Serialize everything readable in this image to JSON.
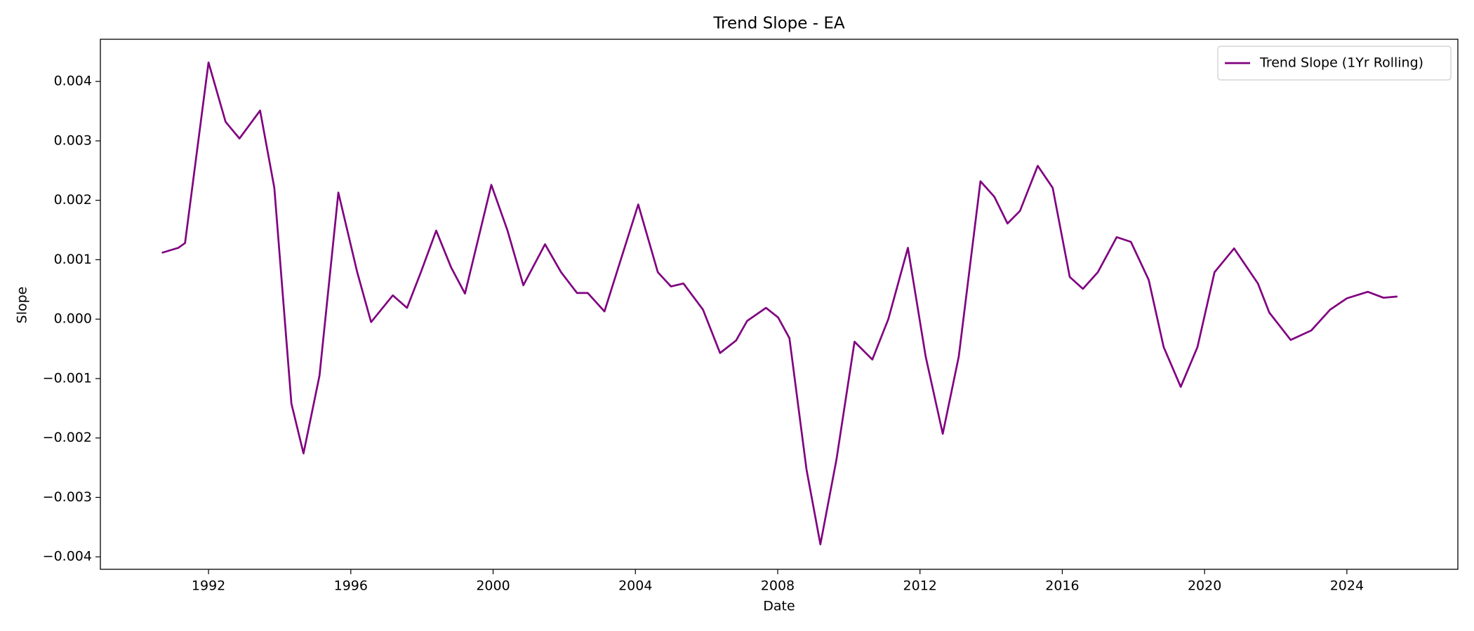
{
  "chart_data": {
    "type": "line",
    "title": "Trend Slope - EA",
    "x_label": "Date",
    "y_label": "Slope",
    "legend": "upper right",
    "grid": false,
    "xlim": [
      1988.96,
      2027.12
    ],
    "xticks": [
      1992,
      1996,
      2000,
      2004,
      2008,
      2012,
      2016,
      2020,
      2024
    ],
    "ylim": [
      -0.00421,
      0.00471
    ],
    "yticks": [
      {
        "value": -0.004,
        "label": "−0.004"
      },
      {
        "value": -0.003,
        "label": "−0.003"
      },
      {
        "value": -0.002,
        "label": "−0.002"
      },
      {
        "value": -0.001,
        "label": "−0.001"
      },
      {
        "value": 0,
        "label": "0.000"
      },
      0.001,
      0.002,
      0.003,
      0.004
    ],
    "x": [
      1990.71,
      1991.15,
      1991.34,
      1992.0,
      1992.48,
      1992.87,
      1993.45,
      1993.85,
      1994.33,
      1994.67,
      1995.12,
      1995.65,
      1996.18,
      1996.57,
      1997.18,
      1997.58,
      1997.97,
      1998.4,
      1998.82,
      1999.21,
      1999.95,
      2000.4,
      2000.85,
      2001.46,
      2001.91,
      2002.36,
      2002.66,
      2003.13,
      2004.08,
      2004.63,
      2005.0,
      2005.35,
      2005.9,
      2006.38,
      2006.83,
      2007.14,
      2007.67,
      2008.01,
      2008.33,
      2008.81,
      2009.2,
      2009.65,
      2010.16,
      2010.66,
      2011.11,
      2011.66,
      2012.16,
      2012.64,
      2013.09,
      2013.7,
      2014.09,
      2014.46,
      2014.81,
      2015.31,
      2015.73,
      2016.21,
      2016.58,
      2017.0,
      2017.53,
      2017.93,
      2018.43,
      2018.85,
      2019.33,
      2019.8,
      2020.28,
      2020.83,
      2021.5,
      2021.82,
      2022.42,
      2023.0,
      2023.53,
      2024.0,
      2024.59,
      2025.03,
      2025.4
    ],
    "series": [
      {
        "name": "Trend Slope (1Yr Rolling)",
        "color": "#800080",
        "values": [
          0.00112,
          0.0012,
          0.00128,
          0.00432,
          0.00332,
          0.00304,
          0.00351,
          0.00221,
          -0.00142,
          -0.00226,
          -0.00095,
          0.00213,
          0.00079,
          -5e-05,
          0.0004,
          0.00019,
          0.00079,
          0.00149,
          0.00087,
          0.00043,
          0.00226,
          0.0015,
          0.00057,
          0.00126,
          0.00079,
          0.00044,
          0.00044,
          0.00013,
          0.00193,
          0.00079,
          0.00055,
          0.0006,
          0.00016,
          -0.00057,
          -0.00036,
          -3e-05,
          0.00019,
          3e-05,
          -0.00032,
          -0.00253,
          -0.00379,
          -0.00237,
          -0.00038,
          -0.00068,
          0.0,
          0.0012,
          -0.00063,
          -0.00193,
          -0.00063,
          0.00232,
          0.00206,
          0.00161,
          0.00182,
          0.00258,
          0.00221,
          0.00071,
          0.00051,
          0.00079,
          0.00138,
          0.0013,
          0.00066,
          -0.00047,
          -0.00114,
          -0.00047,
          0.00079,
          0.00119,
          0.0006,
          0.00011,
          -0.00035,
          -0.00019,
          0.00016,
          0.00035,
          0.00046,
          0.00036,
          0.00038
        ]
      }
    ]
  }
}
